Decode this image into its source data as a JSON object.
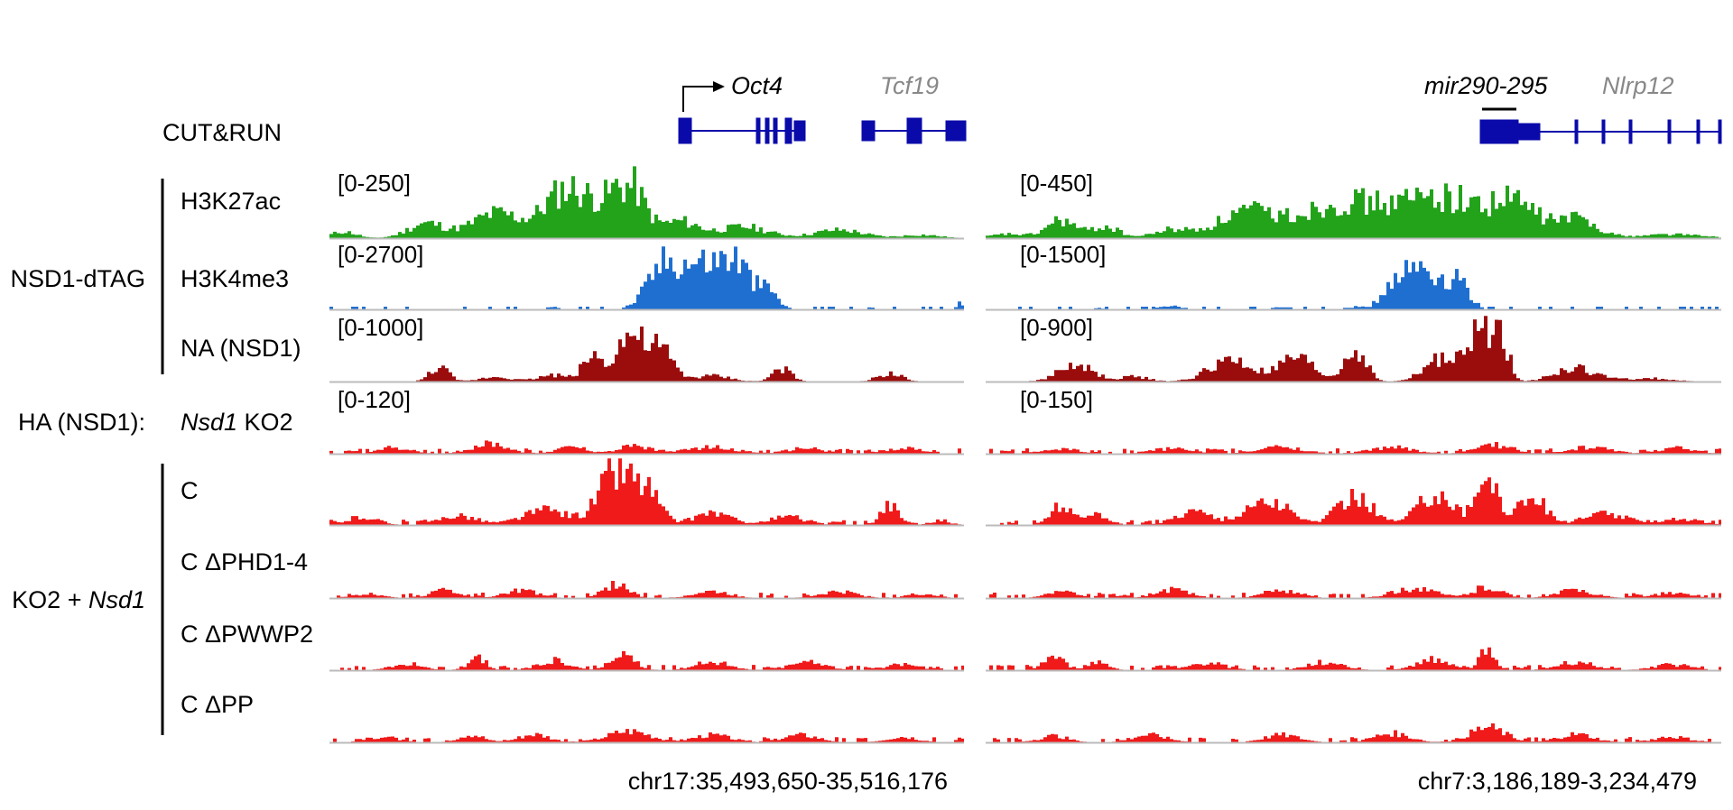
{
  "assay_label": "CUT&RUN",
  "group_labels": {
    "dtag": "NSD1-dTAG",
    "ha": "HA (NSD1):",
    "rescue_prefix": "KO2 + ",
    "rescue_gene": "Nsd1"
  },
  "tracks": [
    {
      "id": "h3k27ac",
      "label": "H3K27ac",
      "color": "#22a31a",
      "ranges": [
        "[0-250]",
        "[0-450]"
      ]
    },
    {
      "id": "h3k4me3",
      "label": "H3K4me3",
      "color": "#1f6fd1",
      "ranges": [
        "[0-2700]",
        "[0-1500]"
      ]
    },
    {
      "id": "na",
      "label": "NA (NSD1)",
      "color": "#9b0d0d",
      "ranges": [
        "[0-1000]",
        "[0-900]"
      ]
    },
    {
      "id": "ko2",
      "label_italic": "Nsd1",
      "label": " KO2",
      "color": "#f01a1a",
      "ranges": [
        "[0-120]",
        "[0-150]"
      ]
    },
    {
      "id": "c",
      "label": "C",
      "color": "#f01a1a",
      "ranges": [
        "",
        ""
      ]
    },
    {
      "id": "c_dphd",
      "label": "C ΔPHD1-4",
      "color": "#f01a1a",
      "ranges": [
        "",
        ""
      ]
    },
    {
      "id": "c_dpwwp",
      "label": "C ΔPWWP2",
      "color": "#f01a1a",
      "ranges": [
        "",
        ""
      ]
    },
    {
      "id": "c_dpp",
      "label": "C ΔPP",
      "color": "#f01a1a",
      "ranges": [
        "",
        ""
      ]
    }
  ],
  "loci": [
    {
      "id": "left",
      "coordinate": "chr17:35,493,650-35,516,176",
      "genes": [
        {
          "name": "Oct4",
          "color": "#000000"
        },
        {
          "name": "Tcf19",
          "color": "#888888"
        }
      ]
    },
    {
      "id": "right",
      "coordinate": "chr7:3,186,189-3,234,479",
      "genes": [
        {
          "name": "mir290-295",
          "color": "#000000"
        },
        {
          "name": "Nlrp12",
          "color": "#888888"
        }
      ]
    }
  ],
  "gene_model_color": "#0a0aaa"
}
